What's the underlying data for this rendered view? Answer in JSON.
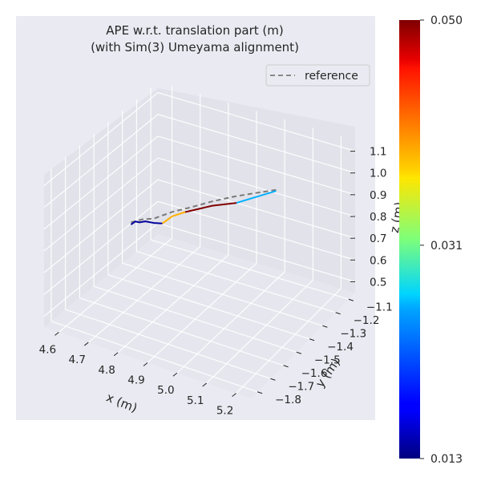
{
  "chart_data": {
    "type": "line",
    "title": "APE w.r.t. translation part (m)",
    "subtitle": "(with Sim(3) Umeyama alignment)",
    "xlabel": "x (m)",
    "ylabel": "y (m)",
    "zlabel": "z (m)",
    "xticks": [
      "4.6",
      "4.7",
      "4.8",
      "4.9",
      "5.0",
      "5.1",
      "5.2"
    ],
    "yticks": [
      "−1.8",
      "−1.7",
      "−1.6",
      "−1.5",
      "−1.4",
      "−1.3",
      "−1.2",
      "−1.1"
    ],
    "zticks": [
      "0.5",
      "0.6",
      "0.7",
      "0.8",
      "0.9",
      "1.0",
      "1.1"
    ],
    "xlim": [
      4.55,
      5.25
    ],
    "ylim": [
      -1.85,
      -1.05
    ],
    "zlim": [
      0.45,
      1.15
    ],
    "grid": true,
    "legend": {
      "position": "top-right",
      "entries": [
        "reference"
      ]
    },
    "colormap": "jet",
    "colorbar": {
      "min": 0.013,
      "max": 0.05,
      "ticks": [
        "0.013",
        "0.031",
        "0.050"
      ]
    },
    "reference": [
      [
        4.58,
        -1.3,
        0.65
      ],
      [
        4.62,
        -1.3,
        0.68
      ],
      [
        4.66,
        -1.3,
        0.7
      ],
      [
        4.72,
        -1.29,
        0.75
      ],
      [
        4.78,
        -1.28,
        0.79
      ],
      [
        4.85,
        -1.27,
        0.84
      ],
      [
        4.92,
        -1.25,
        0.88
      ],
      [
        5.0,
        -1.23,
        0.92
      ],
      [
        5.05,
        -1.21,
        0.94
      ]
    ],
    "series": [
      {
        "values": [
          [
            4.58,
            -1.3,
            0.64
          ],
          [
            4.595,
            -1.3,
            0.66
          ],
          [
            4.61,
            -1.3,
            0.662
          ],
          [
            4.63,
            -1.3,
            0.675
          ],
          [
            4.66,
            -1.3,
            0.68
          ],
          [
            4.69,
            -1.3,
            0.69
          ]
        ],
        "error": 0.014
      },
      {
        "values": [
          [
            4.69,
            -1.3,
            0.69
          ],
          [
            4.72,
            -1.29,
            0.73
          ],
          [
            4.76,
            -1.28,
            0.76
          ]
        ],
        "error": 0.039
      },
      {
        "values": [
          [
            4.76,
            -1.28,
            0.76
          ],
          [
            4.85,
            -1.27,
            0.82
          ],
          [
            4.93,
            -1.26,
            0.86
          ]
        ],
        "error": 0.05
      },
      {
        "values": [
          [
            4.93,
            -1.26,
            0.86
          ],
          [
            5.05,
            -1.22,
            0.94
          ]
        ],
        "error": 0.024
      }
    ]
  }
}
